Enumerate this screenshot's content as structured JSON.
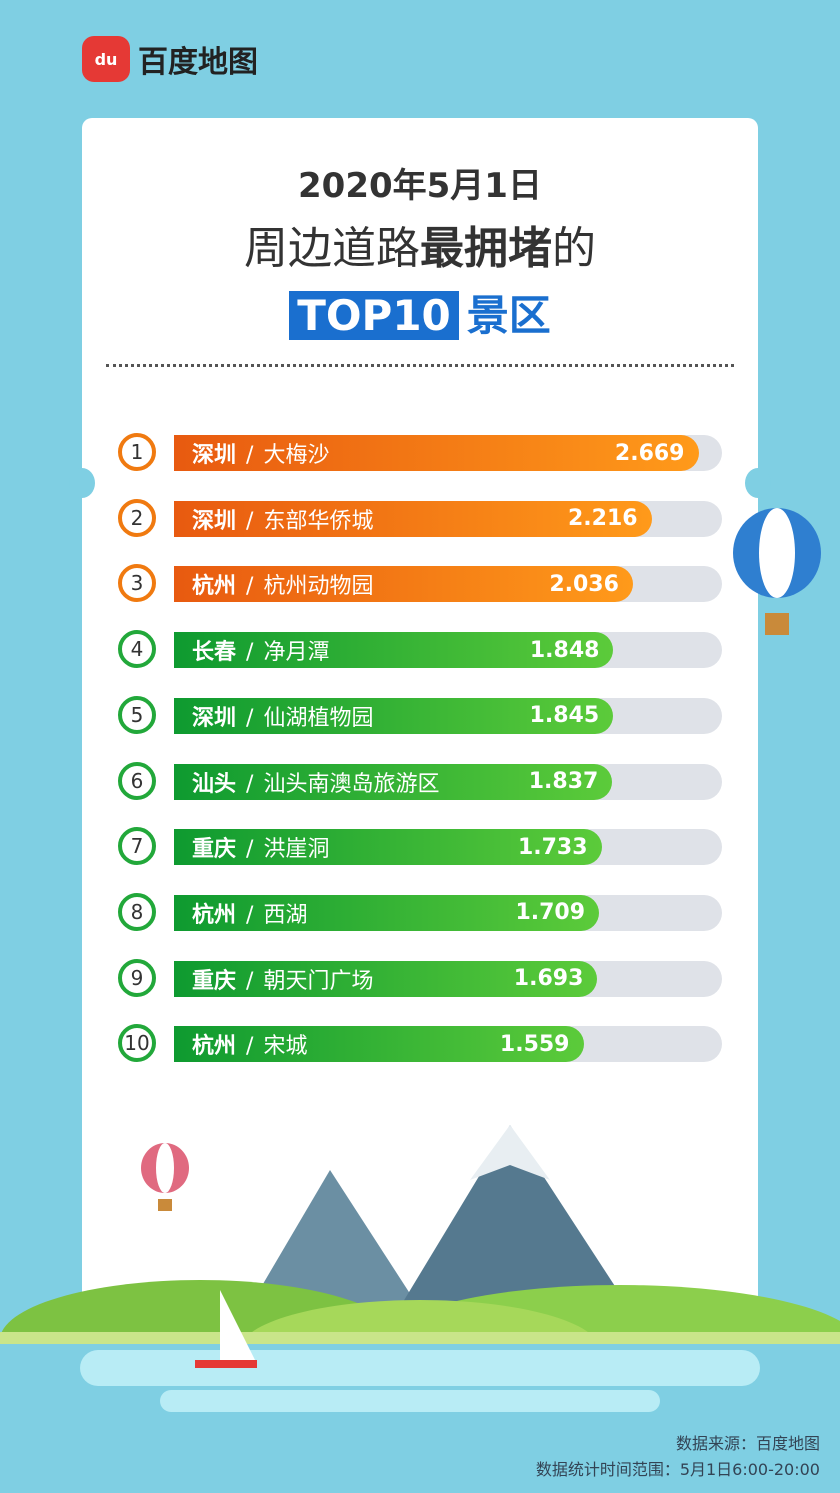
{
  "logo": {
    "text": "百度地图",
    "mark": "du"
  },
  "title": {
    "date": "2020年5月1日",
    "line2_prefix": "周边道路",
    "line2_bold": "最拥堵",
    "line2_suffix": "的",
    "top": "TOP10",
    "line3_suffix": "景区"
  },
  "colors": {
    "top3": "#f07a10",
    "rest": "#22a83a",
    "track": "#dfe2e8",
    "accent": "#1a6fcf"
  },
  "chart_data": {
    "type": "bar",
    "orientation": "horizontal",
    "categories": [
      "深圳 / 大梅沙",
      "深圳 / 东部华侨城",
      "杭州 / 杭州动物园",
      "长春 / 净月潭",
      "深圳 / 仙湖植物园",
      "汕头 / 汕头南澳岛旅游区",
      "重庆 / 洪崖洞",
      "杭州 / 西湖",
      "重庆 / 朝天门广场",
      "杭州 / 宋城"
    ],
    "rows": [
      {
        "rank": "1",
        "city": "深圳",
        "spot": "大梅沙",
        "value": "2.669"
      },
      {
        "rank": "2",
        "city": "深圳",
        "spot": "东部华侨城",
        "value": "2.216"
      },
      {
        "rank": "3",
        "city": "杭州",
        "spot": "杭州动物园",
        "value": "2.036"
      },
      {
        "rank": "4",
        "city": "长春",
        "spot": "净月潭",
        "value": "1.848"
      },
      {
        "rank": "5",
        "city": "深圳",
        "spot": "仙湖植物园",
        "value": "1.845"
      },
      {
        "rank": "6",
        "city": "汕头",
        "spot": "汕头南澳岛旅游区",
        "value": "1.837"
      },
      {
        "rank": "7",
        "city": "重庆",
        "spot": "洪崖洞",
        "value": "1.733"
      },
      {
        "rank": "8",
        "city": "杭州",
        "spot": "西湖",
        "value": "1.709"
      },
      {
        "rank": "9",
        "city": "重庆",
        "spot": "朝天门广场",
        "value": "1.693"
      },
      {
        "rank": "10",
        "city": "杭州",
        "spot": "宋城",
        "value": "1.559"
      }
    ],
    "values": [
      2.669,
      2.216,
      2.036,
      1.848,
      1.845,
      1.837,
      1.733,
      1.709,
      1.693,
      1.559
    ],
    "separator": "/"
  },
  "footer": {
    "source": "数据来源：百度地图",
    "range": "数据统计时间范围：5月1日6:00-20:00"
  }
}
